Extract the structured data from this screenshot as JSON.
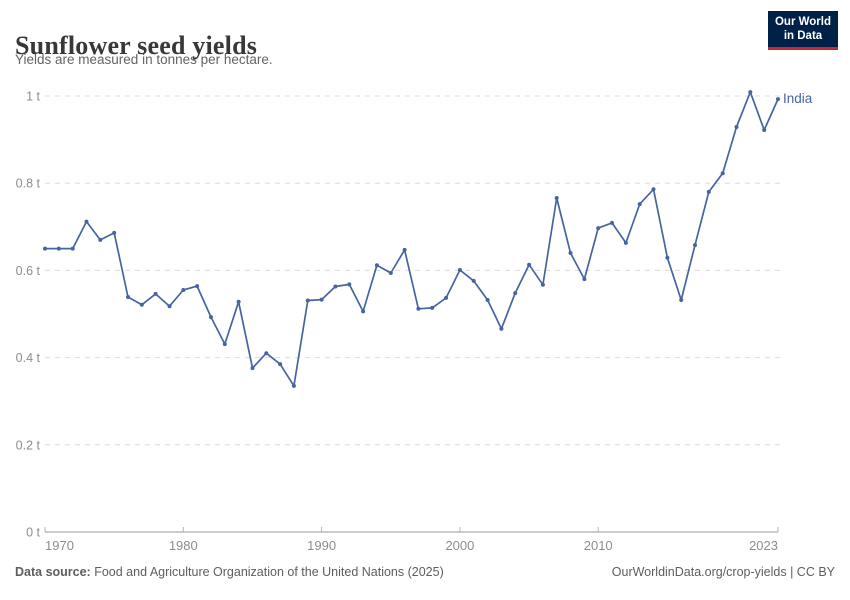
{
  "header": {
    "title": "Sunflower seed yields",
    "subtitle": "Yields are measured in tonnes per hectare."
  },
  "logo": {
    "line1": "Our World",
    "line2": "in Data",
    "bg_color": "#002147",
    "bar_color": "#c5292e"
  },
  "chart_data": {
    "type": "line",
    "title": "Sunflower seed yields",
    "xlabel": "",
    "ylabel": "tonnes per hectare",
    "unit": "t",
    "xlim": [
      1970,
      2023
    ],
    "ylim": [
      0,
      1
    ],
    "grid": "horizontal-dashed",
    "legend_position": "end-of-line",
    "x_ticks": [
      1970,
      1980,
      1990,
      2000,
      2010,
      2023
    ],
    "y_ticks": [
      {
        "v": 0,
        "label": "0 t"
      },
      {
        "v": 0.2,
        "label": "0.2 t"
      },
      {
        "v": 0.4,
        "label": "0.4 t"
      },
      {
        "v": 0.6,
        "label": "0.6 t"
      },
      {
        "v": 0.8,
        "label": "0.8 t"
      },
      {
        "v": 1,
        "label": "1 t"
      }
    ],
    "series": [
      {
        "name": "India",
        "color": "#4664a0",
        "x": [
          1970,
          1971,
          1972,
          1973,
          1974,
          1975,
          1976,
          1977,
          1978,
          1979,
          1980,
          1981,
          1982,
          1983,
          1984,
          1985,
          1986,
          1987,
          1988,
          1989,
          1990,
          1991,
          1992,
          1993,
          1994,
          1995,
          1996,
          1997,
          1998,
          1999,
          2000,
          2001,
          2002,
          2003,
          2004,
          2005,
          2006,
          2007,
          2008,
          2009,
          2010,
          2011,
          2012,
          2013,
          2014,
          2015,
          2016,
          2017,
          2018,
          2019,
          2020,
          2021,
          2022,
          2023
        ],
        "values": [
          0.65,
          0.65,
          0.65,
          0.712,
          0.67,
          0.686,
          0.539,
          0.521,
          0.546,
          0.518,
          0.555,
          0.564,
          0.493,
          0.431,
          0.528,
          0.376,
          0.41,
          0.385,
          0.335,
          0.531,
          0.533,
          0.563,
          0.568,
          0.506,
          0.612,
          0.594,
          0.647,
          0.512,
          0.514,
          0.537,
          0.601,
          0.576,
          0.532,
          0.466,
          0.548,
          0.613,
          0.567,
          0.766,
          0.64,
          0.58,
          0.697,
          0.709,
          0.663,
          0.752,
          0.786,
          0.629,
          0.532,
          0.658,
          0.78,
          0.823,
          0.929,
          1.009,
          0.922,
          0.993
        ]
      }
    ]
  },
  "footer": {
    "source_label": "Data source:",
    "source_text": "Food and Agriculture Organization of the United Nations (2025)",
    "link_text": "OurWorldinData.org/crop-yields | CC BY"
  }
}
